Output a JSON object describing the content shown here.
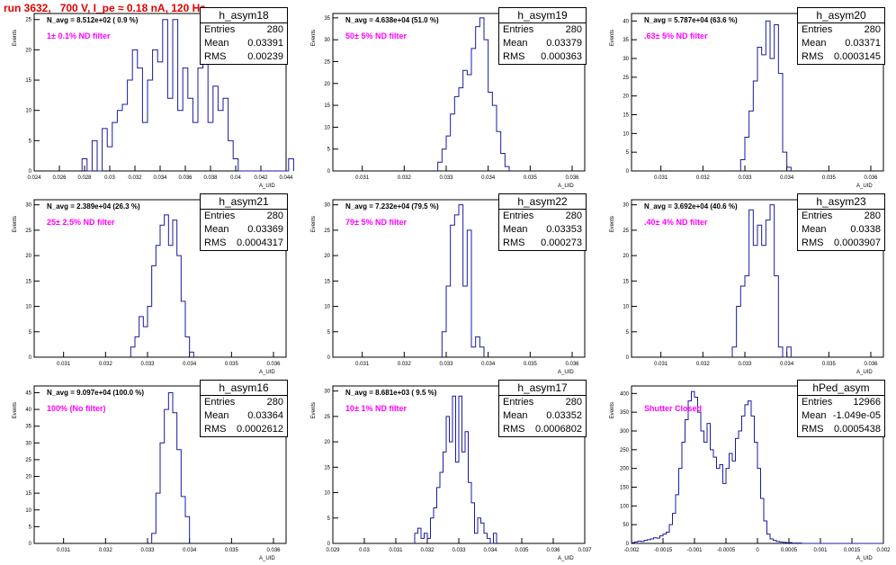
{
  "run_title": "run 3632,   700 V, I_pe ≈ 0.18 nA, 120 Hz",
  "colors": {
    "title": "#e00000",
    "histogram": "#1a1aa0",
    "filter_label": "#ff00ff"
  },
  "chart_data": [
    {
      "type": "histogram",
      "name": "h_asym18",
      "navg": "N_avg = 8.512e+02 ( 0.9 %)",
      "filter": "1± 0.1% ND filter",
      "stats": [
        {
          "label": "Entries",
          "value": "280"
        },
        {
          "label": "Mean",
          "value": "0.03391"
        },
        {
          "label": "RMS",
          "value": "0.00239"
        }
      ],
      "xlabel": "A_UID",
      "ylabel": "Events",
      "xlim": [
        0.024,
        0.044
      ],
      "ylim": [
        0,
        26
      ],
      "xticks": [
        "0.024",
        "0.026",
        "0.028",
        "0.03",
        "0.032",
        "0.034",
        "0.036",
        "0.038",
        "0.04",
        "0.042",
        "0.044"
      ],
      "xtick_values": [
        0.024,
        0.026,
        0.028,
        0.03,
        0.032,
        0.034,
        0.036,
        0.038,
        0.04,
        0.042,
        0.044
      ],
      "yticks": [
        "0",
        "5",
        "10",
        "15",
        "20",
        "25"
      ],
      "ytick_values": [
        0,
        5,
        10,
        15,
        20,
        25
      ],
      "bins": {
        "start": 0.0278,
        "width": 0.0004,
        "values": [
          2,
          0,
          5,
          0,
          7,
          4,
          8,
          10,
          11,
          15,
          20,
          17,
          8,
          15,
          20,
          18,
          25,
          12,
          25,
          10,
          17,
          12,
          8,
          17,
          22,
          8,
          14,
          10,
          12,
          5,
          2,
          0,
          0,
          0,
          0,
          0,
          0,
          0,
          0,
          0,
          0,
          2
        ]
      }
    },
    {
      "type": "histogram",
      "name": "h_asym19",
      "navg": "N_avg = 4.638e+04 (51.0 %)",
      "filter": "50± 5% ND filter",
      "stats": [
        {
          "label": "Entries",
          "value": "280"
        },
        {
          "label": "Mean",
          "value": "0.03379"
        },
        {
          "label": "RMS",
          "value": "0.000363"
        }
      ],
      "xlabel": "A_UID",
      "ylabel": "Events",
      "xlim": [
        0.0303,
        0.0363
      ],
      "ylim": [
        0,
        36
      ],
      "xticks": [
        "0.031",
        "0.032",
        "0.033",
        "0.034",
        "0.035",
        "0.036"
      ],
      "xtick_values": [
        0.031,
        0.032,
        0.033,
        0.034,
        0.035,
        0.036
      ],
      "yticks": [
        "0",
        "5",
        "10",
        "15",
        "20",
        "25",
        "30",
        "35"
      ],
      "ytick_values": [
        0,
        5,
        10,
        15,
        20,
        25,
        30,
        35
      ],
      "bins": {
        "start": 0.0328,
        "width": 0.0001,
        "values": [
          2,
          5,
          8,
          13,
          17,
          19,
          23,
          22,
          28,
          33,
          35,
          30,
          18,
          15,
          9,
          4,
          1
        ]
      }
    },
    {
      "type": "histogram",
      "name": "h_asym20",
      "navg": "N_avg = 5.787e+04 (63.6 %)",
      "filter": ".63± 5% ND filter",
      "stats": [
        {
          "label": "Entries",
          "value": "280"
        },
        {
          "label": "Mean",
          "value": "0.03371"
        },
        {
          "label": "RMS",
          "value": "0.0003145"
        }
      ],
      "xlabel": "A_UID",
      "ylabel": "Events",
      "xlim": [
        0.0303,
        0.0363
      ],
      "ylim": [
        0,
        42
      ],
      "xticks": [
        "0.031",
        "0.032",
        "0.033",
        "0.034",
        "0.035",
        "0.036"
      ],
      "xtick_values": [
        0.031,
        0.032,
        0.033,
        0.034,
        0.035,
        0.036
      ],
      "yticks": [
        "0",
        "5",
        "10",
        "15",
        "20",
        "25",
        "30",
        "35",
        "40"
      ],
      "ytick_values": [
        0,
        5,
        10,
        15,
        20,
        25,
        30,
        35,
        40
      ],
      "bins": {
        "start": 0.0329,
        "width": 0.0001,
        "values": [
          3,
          9,
          16,
          24,
          33,
          31,
          40,
          30,
          39,
          26,
          5,
          1
        ]
      }
    },
    {
      "type": "histogram",
      "name": "h_asym21",
      "navg": "N_avg = 2.389e+04 (26.3 %)",
      "filter": "25± 2.5% ND filter",
      "stats": [
        {
          "label": "Entries",
          "value": "280"
        },
        {
          "label": "Mean",
          "value": "0.03369"
        },
        {
          "label": "RMS",
          "value": "0.0004317"
        }
      ],
      "xlabel": "A_UID",
      "ylabel": "Events",
      "xlim": [
        0.0303,
        0.0363
      ],
      "ylim": [
        0,
        31
      ],
      "xticks": [
        "0.031",
        "0.032",
        "0.033",
        "0.034",
        "0.035",
        "0.036"
      ],
      "xtick_values": [
        0.031,
        0.032,
        0.033,
        0.034,
        0.035,
        0.036
      ],
      "yticks": [
        "0",
        "5",
        "10",
        "15",
        "20",
        "25",
        "30"
      ],
      "ytick_values": [
        0,
        5,
        10,
        15,
        20,
        25,
        30
      ],
      "bins": {
        "start": 0.0326,
        "width": 0.0001,
        "values": [
          2,
          4,
          8,
          6,
          10,
          18,
          22,
          26,
          28,
          22,
          27,
          20,
          11,
          4,
          1
        ]
      }
    },
    {
      "type": "histogram",
      "name": "h_asym22",
      "navg": "N_avg = 7.232e+04 (79.5 %)",
      "filter": "79± 5% ND filter",
      "stats": [
        {
          "label": "Entries",
          "value": "280"
        },
        {
          "label": "Mean",
          "value": "0.03353"
        },
        {
          "label": "RMS",
          "value": "0.000273"
        }
      ],
      "xlabel": "A_UID",
      "ylabel": "Events",
      "xlim": [
        0.0303,
        0.0363
      ],
      "ylim": [
        0,
        31
      ],
      "xticks": [
        "0.031",
        "0.032",
        "0.033",
        "0.034",
        "0.035",
        "0.036"
      ],
      "xtick_values": [
        0.031,
        0.032,
        0.033,
        0.034,
        0.035,
        0.036
      ],
      "yticks": [
        "0",
        "5",
        "10",
        "15",
        "20",
        "25",
        "30"
      ],
      "ytick_values": [
        0,
        5,
        10,
        15,
        20,
        25,
        30
      ],
      "bins": {
        "start": 0.0329,
        "width": 0.0001,
        "values": [
          5,
          14,
          26,
          28,
          30,
          14,
          25,
          2,
          4,
          2
        ]
      }
    },
    {
      "type": "histogram",
      "name": "h_asym23",
      "navg": "N_avg = 3.692e+04 (40.6 %)",
      "filter": ".40± 4% ND filter",
      "stats": [
        {
          "label": "Entries",
          "value": "280"
        },
        {
          "label": "Mean",
          "value": "0.0338"
        },
        {
          "label": "RMS",
          "value": "0.0003907"
        }
      ],
      "xlabel": "A_UID",
      "ylabel": "Events",
      "xlim": [
        0.0303,
        0.0363
      ],
      "ylim": [
        0,
        31
      ],
      "xticks": [
        "0.031",
        "0.032",
        "0.033",
        "0.034",
        "0.035",
        "0.036"
      ],
      "xtick_values": [
        0.031,
        0.032,
        0.033,
        0.034,
        0.035,
        0.036
      ],
      "yticks": [
        "0",
        "5",
        "10",
        "15",
        "20",
        "25",
        "30"
      ],
      "ytick_values": [
        0,
        5,
        10,
        15,
        20,
        25,
        30
      ],
      "bins": {
        "start": 0.0327,
        "width": 0.0001,
        "values": [
          2,
          10,
          14,
          16,
          29,
          22,
          26,
          22,
          27,
          30,
          16,
          2,
          0,
          2
        ]
      }
    },
    {
      "type": "histogram",
      "name": "h_asym16",
      "navg": "N_avg = 9.097e+04 (100.0 %)",
      "filter": "100% (No filter)",
      "stats": [
        {
          "label": "Entries",
          "value": "280"
        },
        {
          "label": "Mean",
          "value": "0.03364"
        },
        {
          "label": "RMS",
          "value": "0.0002612"
        }
      ],
      "xlabel": "A_UID",
      "ylabel": "Events",
      "xlim": [
        0.0303,
        0.0363
      ],
      "ylim": [
        0,
        47
      ],
      "xticks": [
        "0.031",
        "0.032",
        "0.033",
        "0.034",
        "0.035",
        "0.036"
      ],
      "xtick_values": [
        0.031,
        0.032,
        0.033,
        0.034,
        0.035,
        0.036
      ],
      "yticks": [
        "0",
        "5",
        "10",
        "15",
        "20",
        "25",
        "30",
        "35",
        "40",
        "45"
      ],
      "ytick_values": [
        0,
        5,
        10,
        15,
        20,
        25,
        30,
        35,
        40,
        45
      ],
      "bins": {
        "start": 0.0331,
        "width": 0.0001,
        "values": [
          3,
          15,
          30,
          40,
          45,
          39,
          28,
          14,
          8
        ]
      }
    },
    {
      "type": "histogram",
      "name": "h_asym17",
      "navg": "N_avg = 8.681e+03 ( 9.5 %)",
      "filter": "10± 1% ND filter",
      "stats": [
        {
          "label": "Entries",
          "value": "280"
        },
        {
          "label": "Mean",
          "value": "0.03352"
        },
        {
          "label": "RMS",
          "value": "0.0006802"
        }
      ],
      "xlabel": "A_UID",
      "ylabel": "Events",
      "xlim": [
        0.029,
        0.037
      ],
      "ylim": [
        0,
        31
      ],
      "xticks": [
        "0.029",
        "0.03",
        "0.031",
        "0.032",
        "0.033",
        "0.034",
        "0.035",
        "0.036",
        "0.037"
      ],
      "xtick_values": [
        0.029,
        0.03,
        0.031,
        0.032,
        0.033,
        0.034,
        0.035,
        0.036,
        0.037
      ],
      "yticks": [
        "0",
        "5",
        "10",
        "15",
        "20",
        "25",
        "30"
      ],
      "ytick_values": [
        0,
        5,
        10,
        15,
        20,
        25,
        30
      ],
      "bins": {
        "start": 0.0316,
        "width": 0.0001,
        "values": [
          2,
          3,
          1,
          2,
          1,
          5,
          7,
          11,
          14,
          18,
          25,
          20,
          29,
          16,
          29,
          18,
          22,
          12,
          8,
          2,
          5,
          4,
          2,
          1,
          0,
          2
        ]
      }
    },
    {
      "type": "histogram",
      "name": "hPed_asym",
      "navg": "",
      "filter": "Shutter Closed",
      "stats": [
        {
          "label": "Entries",
          "value": "12966"
        },
        {
          "label": "Mean",
          "value": "-1.049e-05"
        },
        {
          "label": "RMS",
          "value": "0.0005438"
        }
      ],
      "xlabel": "A_UID",
      "ylabel": "Events",
      "xlim": [
        -0.002,
        0.002
      ],
      "ylim": [
        0,
        420
      ],
      "xticks": [
        "-0.002",
        "-0.0015",
        "-0.001",
        "-0.0005",
        "0",
        "0.0005",
        "0.001",
        "0.0015",
        "0.002"
      ],
      "xtick_values": [
        -0.002,
        -0.0015,
        -0.001,
        -0.0005,
        0,
        0.0005,
        0.001,
        0.0015,
        0.002
      ],
      "yticks": [
        "0",
        "50",
        "100",
        "150",
        "200",
        "250",
        "300",
        "350",
        "400"
      ],
      "ytick_values": [
        0,
        50,
        100,
        150,
        200,
        250,
        300,
        350,
        400
      ],
      "bins": {
        "start": -0.002,
        "width": 5e-05,
        "values": [
          2,
          4,
          6,
          5,
          8,
          10,
          12,
          15,
          14,
          20,
          25,
          30,
          50,
          80,
          130,
          200,
          270,
          330,
          380,
          405,
          390,
          350,
          300,
          270,
          320,
          250,
          230,
          200,
          210,
          160,
          200,
          240,
          220,
          280,
          300,
          340,
          370,
          380,
          340,
          270,
          200,
          120,
          60,
          25,
          12,
          8,
          5,
          4,
          3,
          2,
          2,
          1,
          1,
          1,
          0,
          0,
          0,
          0,
          0,
          0,
          0,
          0,
          0,
          0,
          0,
          0,
          0,
          0,
          0,
          0,
          0,
          0,
          0,
          0,
          0,
          0,
          0,
          0,
          0,
          0
        ]
      }
    }
  ]
}
